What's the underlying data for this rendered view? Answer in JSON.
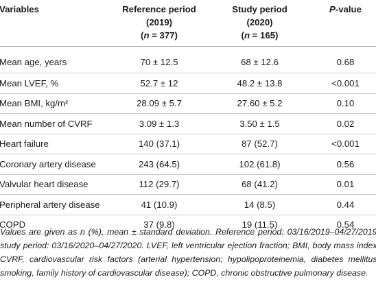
{
  "table": {
    "headers": {
      "variables": "Variables",
      "reference": {
        "line1": "Reference period",
        "line2": "(2019)",
        "n_prefix": "(",
        "n_var": "n",
        "n_rest": " = 377)"
      },
      "study": {
        "line1": "Study period",
        "line2": "(2020)",
        "n_prefix": "(",
        "n_var": "n",
        "n_rest": " = 165)"
      },
      "pvalue": {
        "p": "P",
        "rest": "-value"
      }
    },
    "rows": [
      {
        "label": "Mean age, years",
        "reference": "70 ± 12.5",
        "study": "68 ± 12.6",
        "p": "0.68"
      },
      {
        "label": "Mean LVEF, %",
        "reference": "52.7 ± 12",
        "study": "48.2 ± 13.8",
        "p": "<0.001"
      },
      {
        "label": "Mean BMI, kg/m²",
        "reference": "28.09 ± 5.7",
        "study": "27.60 ± 5.2",
        "p": "0.10"
      },
      {
        "label": "Mean number of CVRF",
        "reference": "3.09 ± 1.3",
        "study": "3.50 ± 1.5",
        "p": "0.02"
      },
      {
        "label": "Heart failure",
        "reference": "140 (37.1)",
        "study": "87 (52.7)",
        "p": "<0.001"
      },
      {
        "label": "Coronary artery disease",
        "reference": "243 (64.5)",
        "study": "102 (61.8)",
        "p": "0.56"
      },
      {
        "label": "Valvular heart disease",
        "reference": "112 (29.7)",
        "study": "68 (41.2)",
        "p": "0.01"
      },
      {
        "label": "Peripheral artery disease",
        "reference": "41 (10.9)",
        "study": "14 (8.5)",
        "p": "0.44"
      },
      {
        "label": "COPD",
        "reference": "37 (9.8)",
        "study": "19 (11.5)",
        "p": "0.54"
      }
    ]
  },
  "footnote": "Values are given as n (%), mean ± standard deviation. Reference period: 03/16/2019–04/27/2019, study period: 03/16/2020–04/27/2020. LVEF, left ventricular ejection fraction; BMI, body mass index; CVRF, cardiovascular risk factors (arterial hypertension; hypolipoproteinemia, diabetes mellitus, smoking, family history of cardiovascular disease); COPD, chronic obstructive pulmonary disease."
}
